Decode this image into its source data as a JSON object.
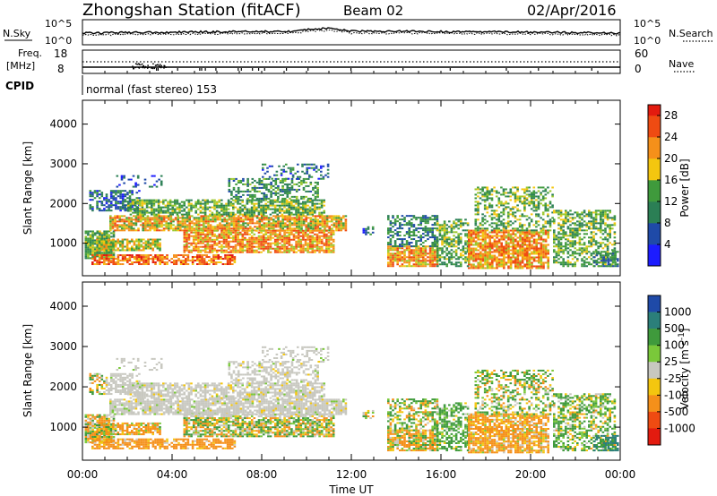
{
  "header": {
    "station": "Zhongshan Station (fitACF)",
    "beam": "Beam 02",
    "date": "02/Apr/2016"
  },
  "strip_labels": {
    "nsky": "N.Sky",
    "nsearch": "N.Search",
    "freq_top": "Freq.",
    "freq_bottom": "[MHz]",
    "nave": "Nave",
    "cpid": "CPID",
    "cpid_value": "normal (fast stereo) 153"
  },
  "strip_ticks": {
    "noise_left": [
      "10^5",
      "10^0"
    ],
    "noise_right": [
      "10^5",
      "10^0"
    ],
    "freq_left": [
      "18",
      "8"
    ],
    "nave_right": [
      "60",
      "0"
    ]
  },
  "colors": {
    "power": [
      "#1c1cff",
      "#1f4aa8",
      "#2b7f55",
      "#3f9a3c",
      "#9ac82c",
      "#f4c60f",
      "#f5901a",
      "#ef4b12",
      "#e31b0f"
    ],
    "velocity": [
      "#e31b0f",
      "#ef4b12",
      "#f5901a",
      "#f4c60f",
      "#c8c8c0",
      "#7ac83a",
      "#3f9a3c",
      "#2b7f7a",
      "#1f4aa8"
    ]
  },
  "chart_data": [
    {
      "type": "heatmap",
      "title": "",
      "ylabel": "Slant Range [km]",
      "xlabel": "",
      "xlim": [
        "00:00",
        "00:00"
      ],
      "ylim": [
        180,
        4600
      ],
      "x_ticks": [
        "00:00",
        "04:00",
        "08:00",
        "12:00",
        "16:00",
        "20:00",
        "00:00"
      ],
      "y_ticks": [
        "1000",
        "2000",
        "3000",
        "4000"
      ],
      "colorbar": {
        "label": "Power [dB]",
        "ticks": [
          "4",
          "8",
          "12",
          "16",
          "20",
          "24",
          "28"
        ],
        "range": [
          0,
          30
        ]
      }
    },
    {
      "type": "heatmap",
      "title": "",
      "ylabel": "Slant Range [km]",
      "xlabel": "Time UT",
      "xlim": [
        "00:00",
        "00:00"
      ],
      "ylim": [
        180,
        4600
      ],
      "x_ticks": [
        "00:00",
        "04:00",
        "08:00",
        "12:00",
        "16:00",
        "20:00",
        "00:00"
      ],
      "y_ticks": [
        "1000",
        "2000",
        "3000",
        "4000"
      ],
      "colorbar": {
        "label": "Velocity [m s^-1]",
        "ticks": [
          "1000",
          "500",
          "100",
          "25",
          "-25",
          "-100",
          "-500",
          "-1000"
        ],
        "range": [
          -1250,
          1250
        ]
      }
    }
  ]
}
